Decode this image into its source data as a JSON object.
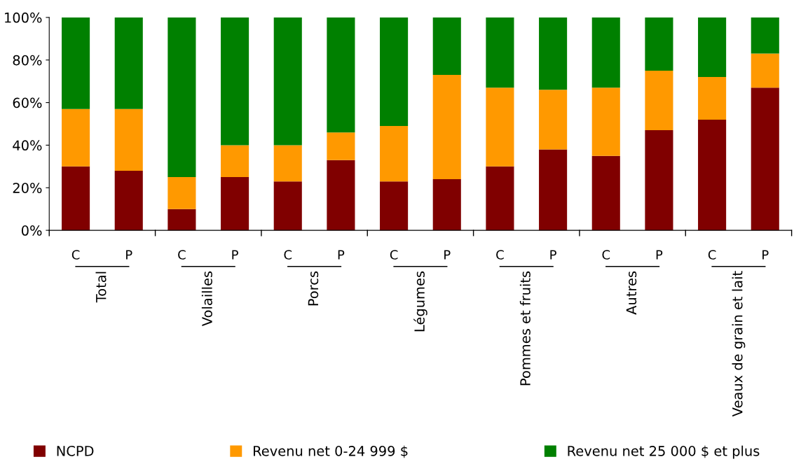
{
  "chart_data": {
    "type": "bar",
    "stacked": true,
    "categories": [
      "C",
      "P",
      "C",
      "P",
      "C",
      "P",
      "C",
      "P",
      "C",
      "P",
      "C",
      "P",
      "C",
      "P"
    ],
    "series": [
      {
        "name": "NCPD",
        "color": "#800000",
        "values": [
          30,
          28,
          10,
          25,
          23,
          33,
          23,
          24,
          30,
          38,
          35,
          47,
          52,
          67
        ]
      },
      {
        "name": "Revenu net 0-24 999 $",
        "color": "#ff9900",
        "values": [
          27,
          29,
          15,
          15,
          17,
          13,
          26,
          49,
          37,
          28,
          32,
          28,
          20,
          16
        ]
      },
      {
        "name": "Revenu net 25 000 $ et plus",
        "color": "#008000",
        "values": [
          43,
          43,
          75,
          60,
          60,
          54,
          51,
          27,
          33,
          34,
          33,
          25,
          28,
          17
        ]
      }
    ],
    "ylim": [
      0,
      100
    ],
    "yticks": [
      {
        "value": 0,
        "label": "0%"
      },
      {
        "value": 20,
        "label": "20%"
      },
      {
        "value": 40,
        "label": "40%"
      },
      {
        "value": 60,
        "label": "60%"
      },
      {
        "value": 80,
        "label": "80%"
      },
      {
        "value": 100,
        "label": "100%"
      }
    ],
    "annotations": [
      "Total",
      "Volailles",
      "Porcs",
      "Légumes",
      "Pommes et fruits",
      "Autres",
      "Veaux de grain et lait"
    ],
    "grid": false,
    "legend": "bottom"
  }
}
